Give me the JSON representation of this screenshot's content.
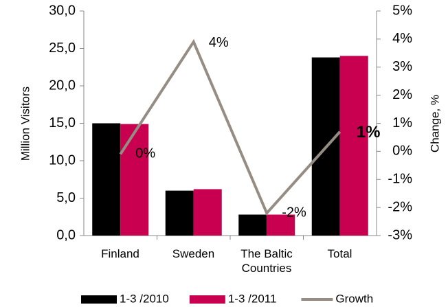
{
  "chart_data": {
    "type": "bar",
    "categories": [
      "Finland",
      "Sweden",
      "The Baltic Countries",
      "Total"
    ],
    "series": [
      {
        "name": "1-3 /2010",
        "color": "#000000",
        "values": [
          15.0,
          6.0,
          2.8,
          23.8
        ]
      },
      {
        "name": "1-3 /2011",
        "color": "#c8004f",
        "values": [
          14.9,
          6.2,
          2.8,
          24.0
        ]
      },
      {
        "name": "Growth",
        "type": "line",
        "axis": "y2",
        "color": "#958d83",
        "values": [
          -0.1,
          3.9,
          -2.2,
          0.7
        ],
        "value_labels": [
          "0%",
          "4%",
          "-2%",
          "1%"
        ]
      }
    ],
    "ylabel": "Million Visitors",
    "y2label": "Change, %",
    "ylim": [
      0,
      30
    ],
    "yticks": [
      {
        "value": 0,
        "label": "0,0"
      },
      {
        "value": 5,
        "label": "5,0"
      },
      {
        "value": 10,
        "label": "10,0"
      },
      {
        "value": 15,
        "label": "15,0"
      },
      {
        "value": 20,
        "label": "20,0"
      },
      {
        "value": 25,
        "label": "25,0"
      },
      {
        "value": 30,
        "label": "30,0"
      }
    ],
    "y2lim": [
      -3,
      5
    ],
    "y2ticks": [
      {
        "value": -3,
        "label": "-3%"
      },
      {
        "value": -2,
        "label": "-2%"
      },
      {
        "value": -1,
        "label": "-1%"
      },
      {
        "value": 0,
        "label": "0%"
      },
      {
        "value": 1,
        "label": "1%"
      },
      {
        "value": 2,
        "label": "2%"
      },
      {
        "value": 3,
        "label": "3%"
      },
      {
        "value": 4,
        "label": "4%"
      },
      {
        "value": 5,
        "label": "5%"
      }
    ],
    "legend": "bottom"
  }
}
